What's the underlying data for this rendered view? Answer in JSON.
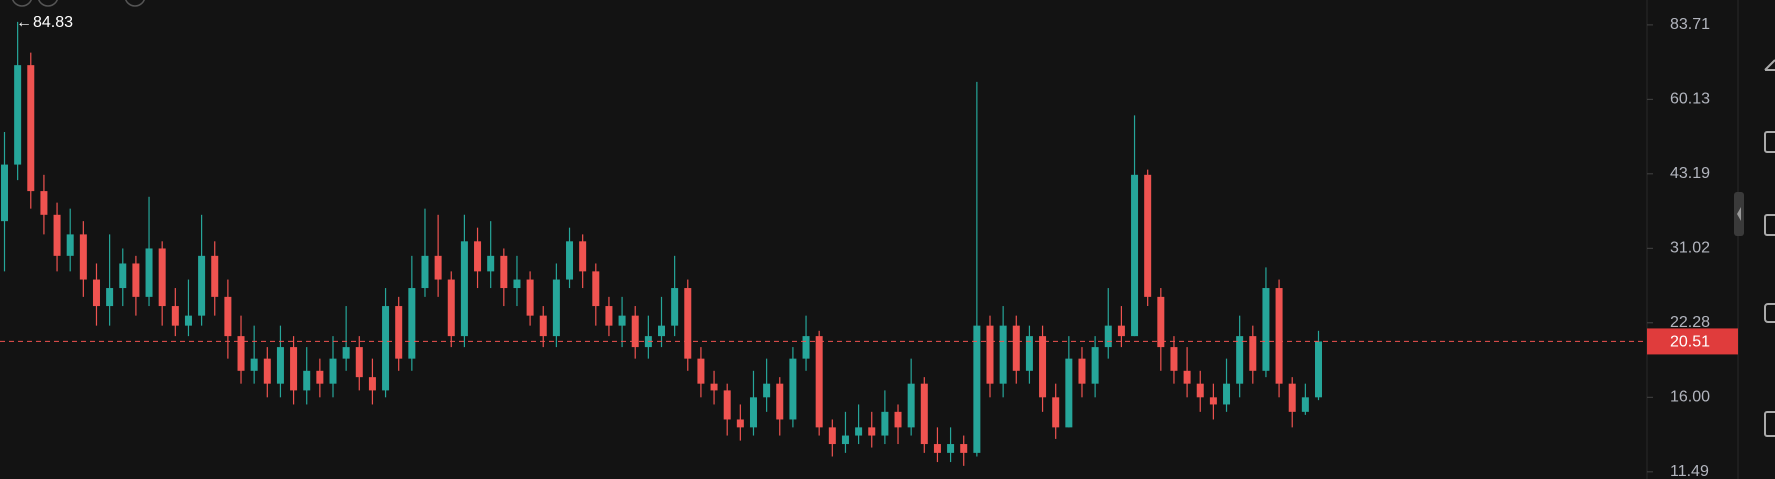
{
  "chart_data": {
    "type": "candlestick",
    "log_scale": true,
    "up_color": "#26a69a",
    "down_color": "#ef5350",
    "ylim": [
      11.13,
      93.5
    ],
    "yticks": [
      83.71,
      60.13,
      43.19,
      31.02,
      22.28,
      {
        "value": 16,
        "label": "16.00"
      },
      11.49
    ],
    "open": [
      35,
      45,
      70,
      40,
      36,
      30,
      33,
      27,
      24,
      26,
      29,
      25,
      31,
      24,
      22,
      23,
      30,
      25,
      21,
      18,
      19,
      17,
      20,
      16.5,
      18,
      17,
      19,
      20,
      17.5,
      16.5,
      24,
      19,
      26,
      30,
      27,
      21,
      32,
      28,
      30,
      26,
      27,
      23,
      21,
      27,
      32,
      28,
      24,
      22,
      23,
      20,
      21,
      22,
      26,
      19,
      17,
      16.5,
      14.5,
      14,
      16,
      17,
      14.5,
      19,
      21,
      14,
      13,
      13.5,
      14,
      13.5,
      15,
      14,
      17,
      13,
      12.5,
      13,
      12.5,
      22,
      17,
      22,
      18,
      21,
      16,
      14,
      19,
      17,
      20,
      22,
      21,
      43,
      25,
      20,
      18,
      17,
      16,
      15.5,
      17,
      21,
      18,
      26,
      17,
      15,
      16
    ],
    "high": [
      52,
      84.83,
      74,
      43,
      38,
      37,
      35,
      29,
      33,
      31,
      30,
      39,
      32,
      26,
      27,
      36,
      32,
      27,
      23,
      22,
      20,
      22,
      21,
      20,
      19,
      21,
      24,
      21,
      19,
      26,
      25,
      30,
      37,
      36,
      28,
      36,
      34,
      35,
      31,
      30,
      28,
      24,
      29,
      34,
      33,
      29,
      25,
      25,
      24,
      23,
      25,
      30,
      27,
      20,
      18,
      17,
      15.5,
      18,
      19,
      17.5,
      20,
      23,
      21.5,
      14.5,
      15,
      15.5,
      15,
      16.5,
      15.5,
      19,
      17.5,
      14,
      14,
      13.5,
      65,
      23,
      24,
      23,
      22,
      22,
      17,
      21,
      20,
      21,
      26,
      24,
      56,
      44,
      26,
      21,
      20,
      18,
      17,
      19,
      23,
      22,
      28.5,
      27,
      17.5,
      17,
      21.5
    ],
    "low": [
      28,
      42,
      37,
      33,
      28,
      28,
      25,
      22,
      22,
      24,
      23,
      24,
      22,
      21,
      21,
      22,
      23,
      19,
      17,
      17,
      16,
      16,
      15.5,
      15.5,
      16,
      16,
      18,
      16.5,
      15.5,
      16,
      18,
      18,
      25,
      25,
      20,
      20,
      26,
      26,
      24,
      24,
      22,
      20,
      20,
      26,
      26,
      22,
      21,
      20,
      19,
      19,
      20,
      21,
      18,
      16,
      15.5,
      13.5,
      13.2,
      13.5,
      15,
      13.5,
      14,
      18,
      13.5,
      12.3,
      12.5,
      13,
      12.8,
      13,
      13,
      13.5,
      12.5,
      12,
      12,
      11.8,
      12.3,
      16,
      16,
      17,
      17,
      15,
      13.3,
      14,
      16,
      16,
      19,
      20,
      21,
      24,
      18,
      17,
      16,
      15,
      14.5,
      15,
      16,
      17,
      17.5,
      16,
      14,
      14.8,
      15.8
    ],
    "close": [
      45,
      70,
      40,
      36,
      30,
      33,
      27,
      24,
      26,
      29,
      25,
      31,
      24,
      22,
      23,
      30,
      25,
      21,
      18,
      19,
      17,
      20,
      16.5,
      18,
      17,
      19,
      20,
      17.5,
      16.5,
      24,
      19,
      26,
      30,
      27,
      21,
      32,
      28,
      30,
      26,
      27,
      23,
      21,
      27,
      32,
      28,
      24,
      22,
      23,
      20,
      21,
      22,
      26,
      19,
      17,
      16.5,
      14.5,
      14,
      16,
      17,
      14.5,
      19,
      21,
      14,
      13,
      13.5,
      14,
      13.5,
      15,
      14,
      17,
      13,
      12.5,
      13,
      12.5,
      22,
      17,
      22,
      18,
      21,
      16,
      14,
      19,
      17,
      20,
      22,
      21,
      43,
      25,
      20,
      18,
      17,
      16,
      15.5,
      17,
      21,
      18,
      26,
      17,
      15,
      16,
      20.51
    ]
  }
}
